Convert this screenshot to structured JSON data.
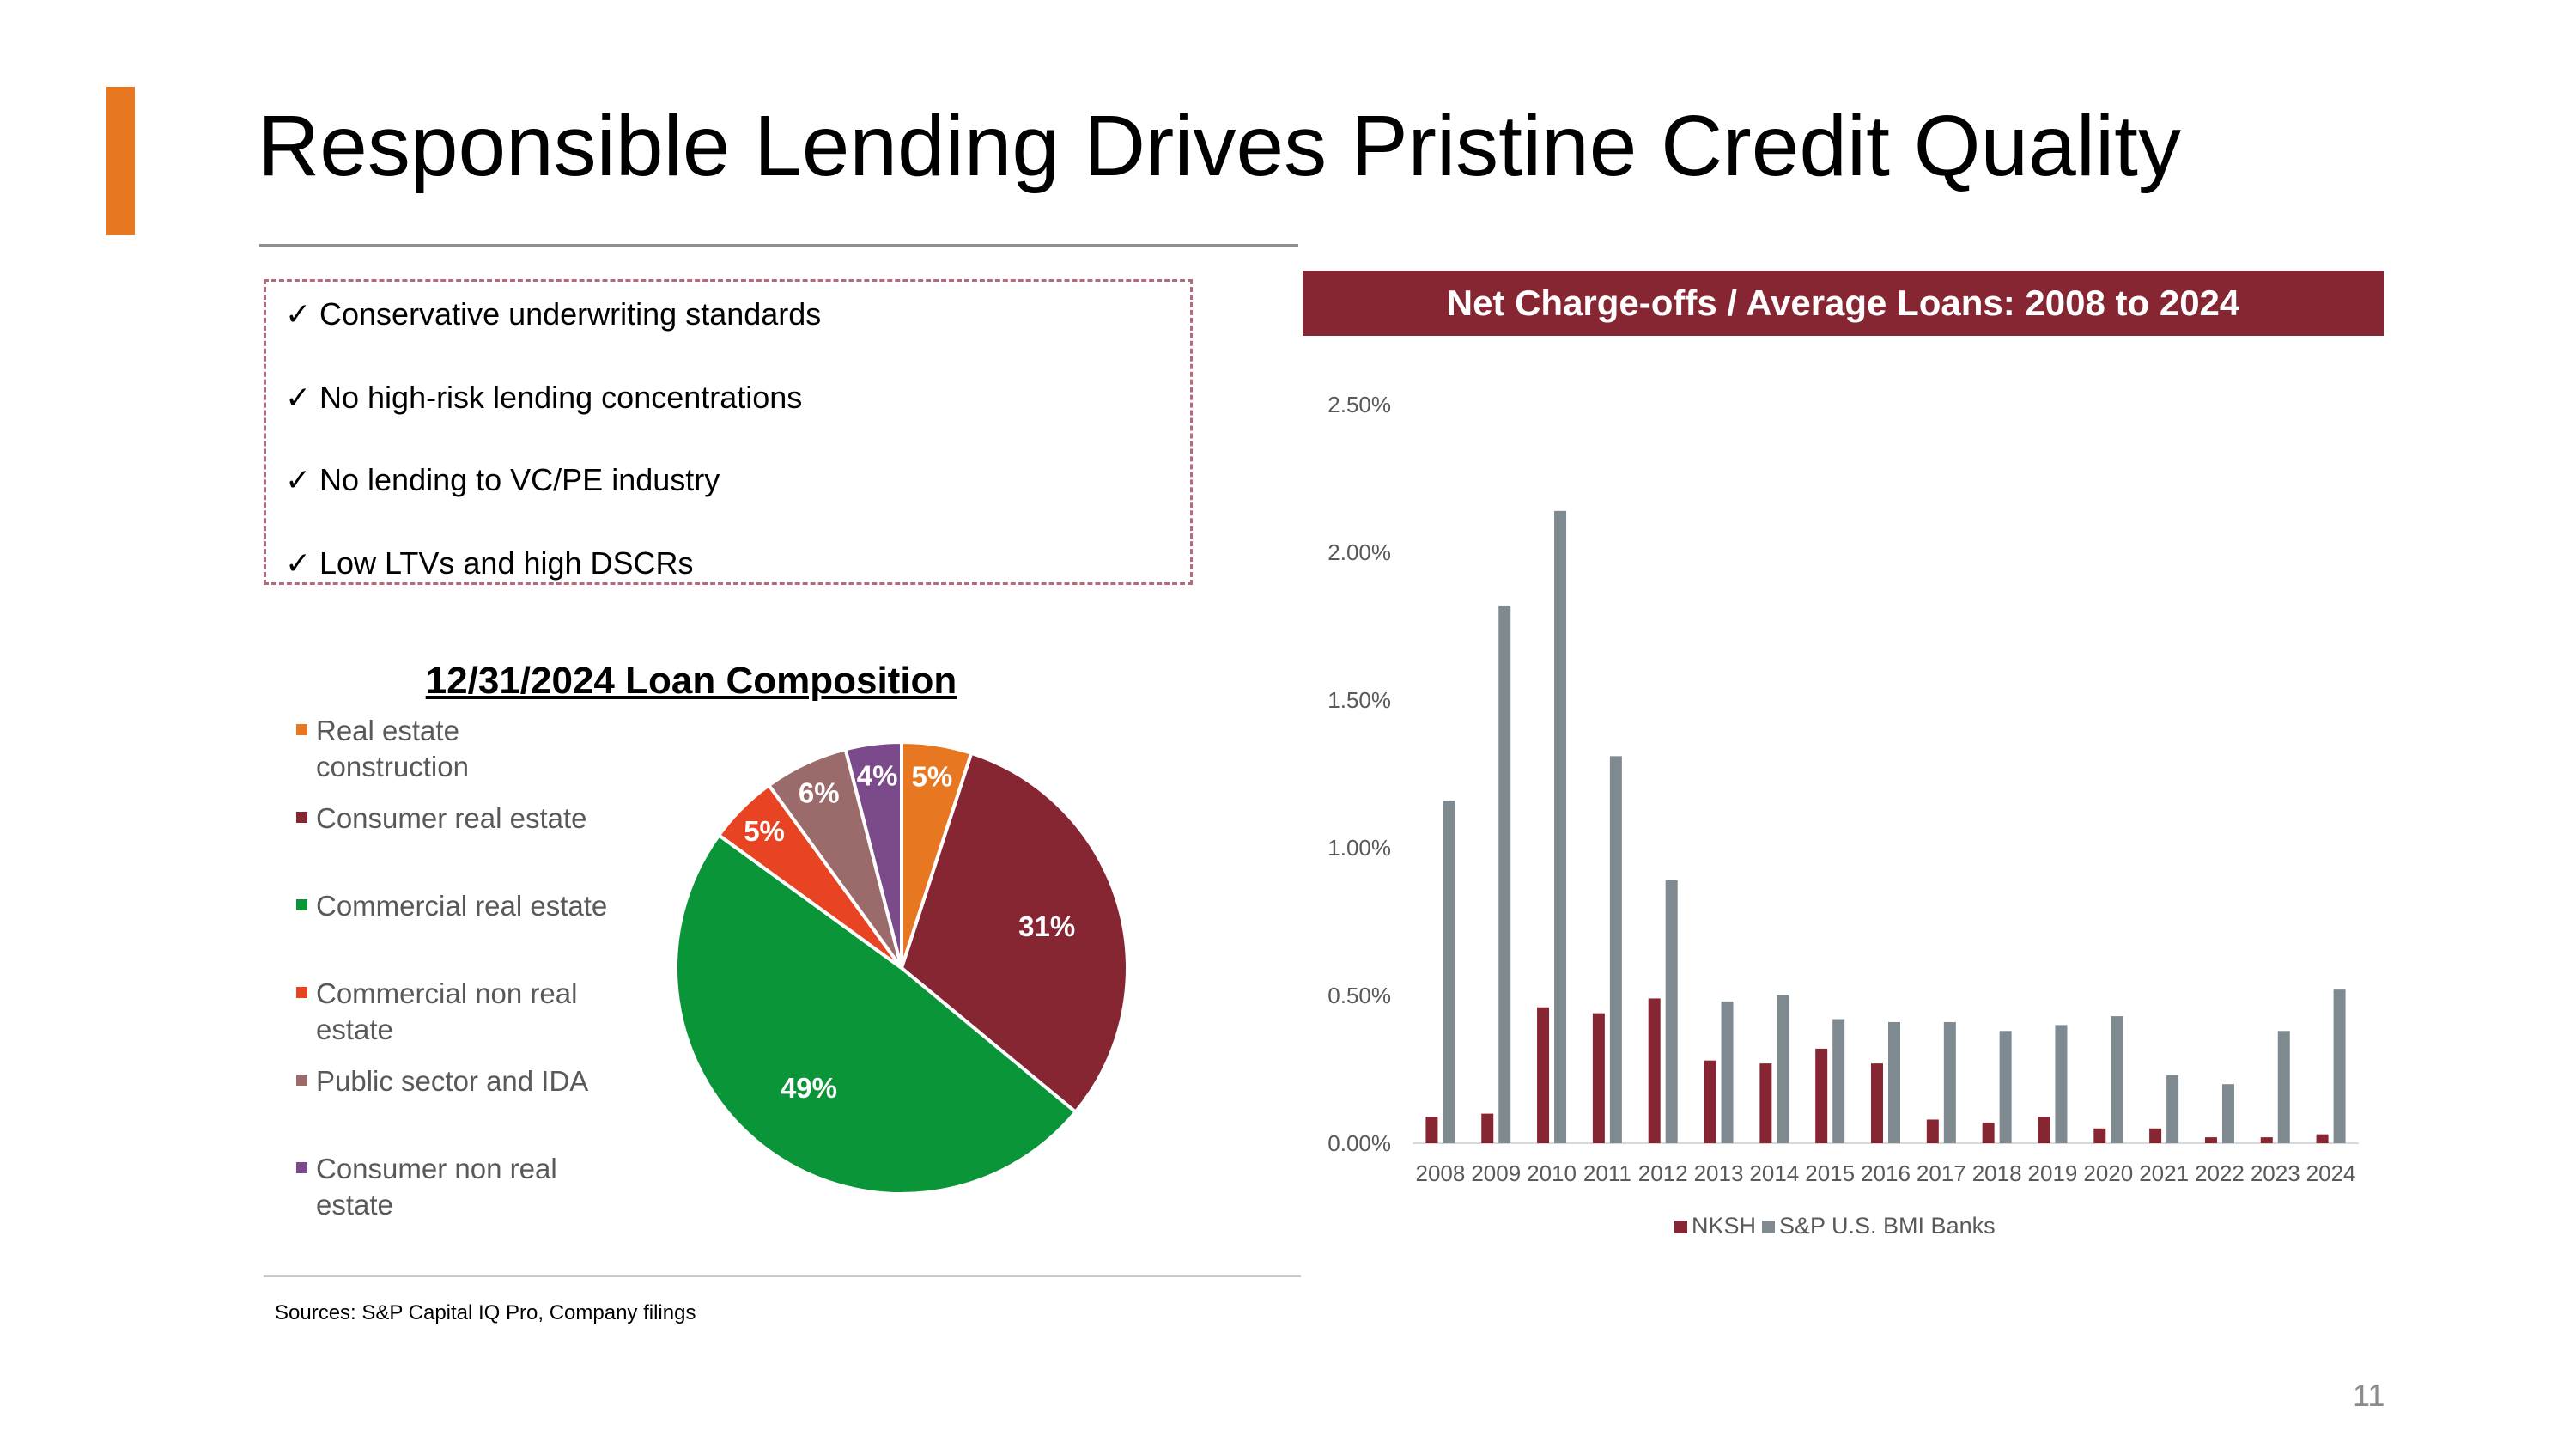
{
  "slide": {
    "title": "Responsible Lending Drives Pristine Credit Quality",
    "accent_color": "#E87722",
    "sources": "Sources: S&P Capital IQ Pro, Company filings",
    "page_number": "11"
  },
  "bullets": {
    "check_glyph": "✓",
    "items": [
      "Conservative underwriting standards",
      "No high-risk lending concentrations",
      "No lending to VC/PE industry",
      "Low LTVs and high DSCRs"
    ]
  },
  "chart_data": [
    {
      "type": "pie",
      "title": "12/31/2024 Loan Composition",
      "labels": [
        "Real estate construction",
        "Consumer real estate",
        "Commercial real estate",
        "Commercial non real estate",
        "Public sector and IDA",
        "Consumer non real estate"
      ],
      "values": [
        5,
        31,
        49,
        5,
        6,
        4
      ],
      "data_labels": [
        "5%",
        "31%",
        "49%",
        "5%",
        "6%",
        "4%"
      ],
      "colors": [
        "#E87722",
        "#862633",
        "#0A9538",
        "#E84424",
        "#9B6B6B",
        "#7B4A8B"
      ],
      "legend_position": "left"
    },
    {
      "type": "bar",
      "title": "Net Charge-offs / Average Loans: 2008 to 2024",
      "categories": [
        "2008",
        "2009",
        "2010",
        "2011",
        "2012",
        "2013",
        "2014",
        "2015",
        "2016",
        "2017",
        "2018",
        "2019",
        "2020",
        "2021",
        "2022",
        "2023",
        "2024"
      ],
      "series": [
        {
          "name": "NKSH",
          "color": "#862633",
          "values": [
            0.09,
            0.1,
            0.46,
            0.44,
            0.49,
            0.28,
            0.27,
            0.32,
            0.27,
            0.08,
            0.07,
            0.09,
            0.05,
            0.05,
            0.02,
            0.02,
            0.03
          ]
        },
        {
          "name": "S&P U.S. BMI Banks",
          "color": "#7F8A90",
          "values": [
            1.16,
            1.82,
            2.14,
            1.31,
            0.89,
            0.48,
            0.5,
            0.42,
            0.41,
            0.41,
            0.38,
            0.4,
            0.43,
            0.23,
            0.2,
            0.38,
            0.52
          ]
        }
      ],
      "y_ticks": [
        "0.00%",
        "0.50%",
        "1.00%",
        "1.50%",
        "2.00%",
        "2.50%"
      ],
      "ylim": [
        0,
        2.5
      ],
      "grid": false,
      "legend_position": "bottom"
    }
  ]
}
